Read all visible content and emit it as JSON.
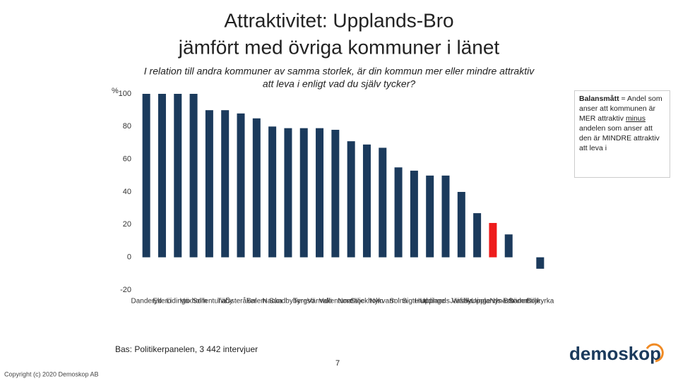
{
  "chart_data": {
    "type": "bar",
    "title": [
      "Attraktivitet: Upplands-Bro",
      "jämfört med övriga kommuner i länet"
    ],
    "subtitle": [
      "I relation till andra kommuner av samma storlek, är din kommun mer eller mindre attraktiv",
      "att leva i enligt vad du själv tycker?"
    ],
    "y_label": "%",
    "categories": [
      "Danderyd",
      "Ekerö",
      "Lidingö",
      "Vaxholm",
      "Sollentuna",
      "Täby",
      "Österåker",
      "Salem",
      "Nacka",
      "Sundbyberg",
      "Tyresö",
      "Värmdö",
      "Vallentuna",
      "Norrtälje",
      "Stockholm",
      "Nykvarn",
      "Solna",
      "Sigtuna",
      "Huddinge",
      "Upplands Väsby",
      "Järfälla",
      "Haninge",
      "Upplands-Bro",
      "Nynäshamn",
      "Södertälje",
      "Botkyrka"
    ],
    "values": [
      100,
      100,
      100,
      100,
      90,
      90,
      88,
      85,
      80,
      79,
      79,
      79,
      78,
      71,
      69,
      67,
      55,
      53,
      50,
      50,
      40,
      27,
      21,
      14,
      0,
      -7
    ],
    "color": "#1b3a5c",
    "highlight": {
      "category": "Upplands-Bro",
      "color": "#ee1c1c"
    },
    "ylim": [
      -20,
      100
    ],
    "yticks": [
      -20,
      0,
      20,
      40,
      60,
      80,
      100
    ],
    "grid": false,
    "note": {
      "bold": "Balansmått",
      "text1": " = Andel som anser att kommunen är MER attraktiv ",
      "underlined": "minus",
      "text2": " andelen som anser att den är MINDRE attraktiv att leva i"
    },
    "base": "Bas: Politikerpanelen, 3 442 intervjuer",
    "page_number": "7",
    "copyright": "Copyright (c) 2020 Demoskop AB",
    "logo": "demoskop"
  }
}
